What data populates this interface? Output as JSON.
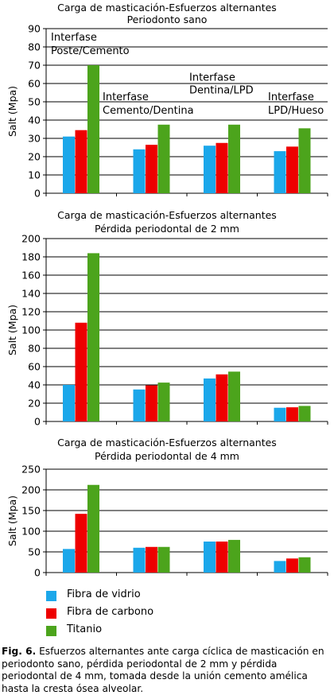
{
  "colors": {
    "fibra_vidrio": "#1ba7ea",
    "fibra_carbono": "#ee0000",
    "titanio": "#4ca41c"
  },
  "legend": [
    {
      "label": "Fibra de vidrio",
      "color": "#1ba7ea"
    },
    {
      "label": "Fibra de carbono",
      "color": "#ee0000"
    },
    {
      "label": "Titanio",
      "color": "#4ca41c"
    }
  ],
  "caption": {
    "label": "Fig. 6.",
    "text": " Esfuerzos alternantes ante carga cíclica de masticación en periodonto sano, pérdida periodontal de 2 mm y pérdida periodontal de 4 mm, tomada desde la unión cemento amélica hasta la cresta ósea alveolar."
  },
  "chart_data": [
    {
      "type": "bar",
      "title": [
        "Carga de masticación-Esfuerzos alternantes",
        "Periodonto sano"
      ],
      "ylabel": "Salt (Mpa)",
      "ylim": [
        0,
        90
      ],
      "yticks": [
        0,
        10,
        20,
        30,
        40,
        50,
        60,
        70,
        80,
        90
      ],
      "grid": true,
      "categories": [
        "Interfase Poste/Cemento",
        "Interfase Cemento/Dentina",
        "Interfase Dentina/LPD",
        "Interfase LPD/Hueso"
      ],
      "category_labels": [
        [
          "Interfase",
          "Poste/Cemento"
        ],
        [
          "Interfase",
          "Cemento/Dentina"
        ],
        [
          "Interfase",
          "Dentina/LPD"
        ],
        [
          "Interfase",
          "LPD/Hueso"
        ]
      ],
      "series": [
        {
          "name": "Fibra de vidrio",
          "values": [
            31,
            24,
            26,
            23
          ]
        },
        {
          "name": "Fibra de carbono",
          "values": [
            34.5,
            26.5,
            27.5,
            25.5
          ]
        },
        {
          "name": "Titanio",
          "values": [
            70,
            37.5,
            37.5,
            35.5
          ]
        }
      ]
    },
    {
      "type": "bar",
      "title": [
        "Carga de masticación-Esfuerzos alternantes",
        "Pérdida periodontal de 2 mm"
      ],
      "ylabel": "Salt (Mpa)",
      "ylim": [
        0,
        200
      ],
      "yticks": [
        0,
        20,
        40,
        60,
        80,
        100,
        120,
        140,
        160,
        180,
        200
      ],
      "grid": true,
      "categories": [
        "Interfase Poste/Cemento",
        "Interfase Cemento/Dentina",
        "Interfase Dentina/LPD",
        "Interfase LPD/Hueso"
      ],
      "series": [
        {
          "name": "Fibra de vidrio",
          "values": [
            40,
            35,
            47,
            15
          ]
        },
        {
          "name": "Fibra de carbono",
          "values": [
            108,
            39.5,
            51.5,
            15.5
          ]
        },
        {
          "name": "Titanio",
          "values": [
            184,
            42.5,
            54.5,
            17
          ]
        }
      ]
    },
    {
      "type": "bar",
      "title": [
        "Carga de masticación-Esfuerzos alternantes",
        "Pérdida periodontal de 4 mm"
      ],
      "ylabel": "Salt (Mpa)",
      "ylim": [
        0,
        250
      ],
      "yticks": [
        0,
        50,
        100,
        150,
        200,
        250
      ],
      "grid": true,
      "categories": [
        "Interfase Poste/Cemento",
        "Interfase Cemento/Dentina",
        "Interfase Dentina/LPD",
        "Interfase LPD/Hueso"
      ],
      "series": [
        {
          "name": "Fibra de vidrio",
          "values": [
            57,
            60,
            75,
            28
          ]
        },
        {
          "name": "Fibra de carbono",
          "values": [
            142,
            62,
            75,
            34
          ]
        },
        {
          "name": "Titanio",
          "values": [
            212,
            62,
            79,
            37
          ]
        }
      ]
    }
  ]
}
